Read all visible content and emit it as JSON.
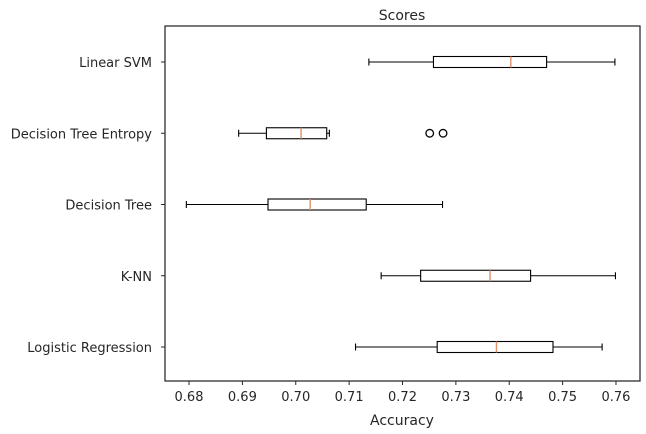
{
  "chart_data": {
    "type": "boxplot",
    "orientation": "horizontal",
    "title": "Scores",
    "xlabel": "Accuracy",
    "ylabel": "",
    "xlim": [
      0.6755,
      0.7645
    ],
    "xticks": [
      0.68,
      0.69,
      0.7,
      0.71,
      0.72,
      0.73,
      0.74,
      0.75,
      0.76
    ],
    "xtick_labels": [
      "0.68",
      "0.69",
      "0.70",
      "0.71",
      "0.72",
      "0.73",
      "0.74",
      "0.75",
      "0.76"
    ],
    "grid": false,
    "categories": [
      "Logistic Regression",
      "K-NN",
      "Decision Tree",
      "Decision Tree Entropy",
      "Linear SVM"
    ],
    "series": [
      {
        "name": "Logistic Regression",
        "whislo": 0.7112,
        "q1": 0.7265,
        "med": 0.7376,
        "q3": 0.7482,
        "whishi": 0.7574,
        "fliers": []
      },
      {
        "name": "K-NN",
        "whislo": 0.716,
        "q1": 0.7234,
        "med": 0.7364,
        "q3": 0.744,
        "whishi": 0.7599,
        "fliers": []
      },
      {
        "name": "Decision Tree",
        "whislo": 0.6795,
        "q1": 0.6948,
        "med": 0.7027,
        "q3": 0.7132,
        "whishi": 0.7275,
        "fliers": []
      },
      {
        "name": "Decision Tree Entropy",
        "whislo": 0.6893,
        "q1": 0.6945,
        "med": 0.701,
        "q3": 0.7058,
        "whishi": 0.7063,
        "fliers": [
          0.7251,
          0.7276
        ]
      },
      {
        "name": "Linear SVM",
        "whislo": 0.7137,
        "q1": 0.7258,
        "med": 0.7403,
        "q3": 0.747,
        "whishi": 0.7598,
        "fliers": []
      }
    ],
    "colors": {
      "box": "#000000",
      "median": "#e0906a",
      "frame": "#262626"
    }
  }
}
